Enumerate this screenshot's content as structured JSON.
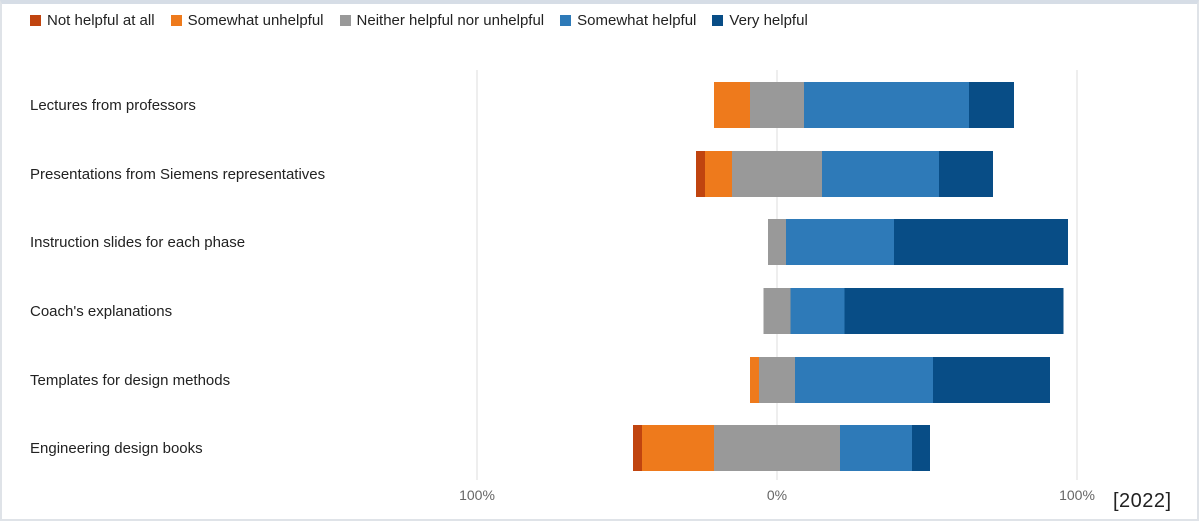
{
  "chart_data": {
    "type": "bar",
    "orientation": "horizontal-diverging-stacked",
    "title": "",
    "xlabel": "",
    "ylabel": "",
    "xlim": [
      -100,
      100
    ],
    "x_ticks": [
      "100%",
      "0%",
      "100%"
    ],
    "grid": true,
    "legend_position": "top-left",
    "categories": [
      "Lectures from professors",
      "Presentations from Siemens representatives",
      "Instruction slides for each phase",
      "Coach's explanations",
      "Templates for design methods",
      "Engineering design books"
    ],
    "series": [
      {
        "name": "Not helpful at all",
        "color": "#c0440f",
        "values": [
          0,
          3,
          0,
          0,
          0,
          3
        ]
      },
      {
        "name": "Somewhat unhelpful",
        "color": "#ee7a1c",
        "values": [
          12,
          9,
          0,
          0,
          3,
          24
        ]
      },
      {
        "name": "Neither helpful nor unhelpful",
        "color": "#999999",
        "values": [
          18,
          30,
          6,
          9,
          12,
          42
        ]
      },
      {
        "name": "Somewhat helpful",
        "color": "#2e7ab8",
        "values": [
          55,
          39,
          36,
          18,
          46,
          24
        ]
      },
      {
        "name": "Very helpful",
        "color": "#084d86",
        "values": [
          15,
          18,
          58,
          73,
          39,
          6
        ]
      }
    ],
    "neutral_series_index": 2
  },
  "footer": {
    "year": "[2022]"
  }
}
